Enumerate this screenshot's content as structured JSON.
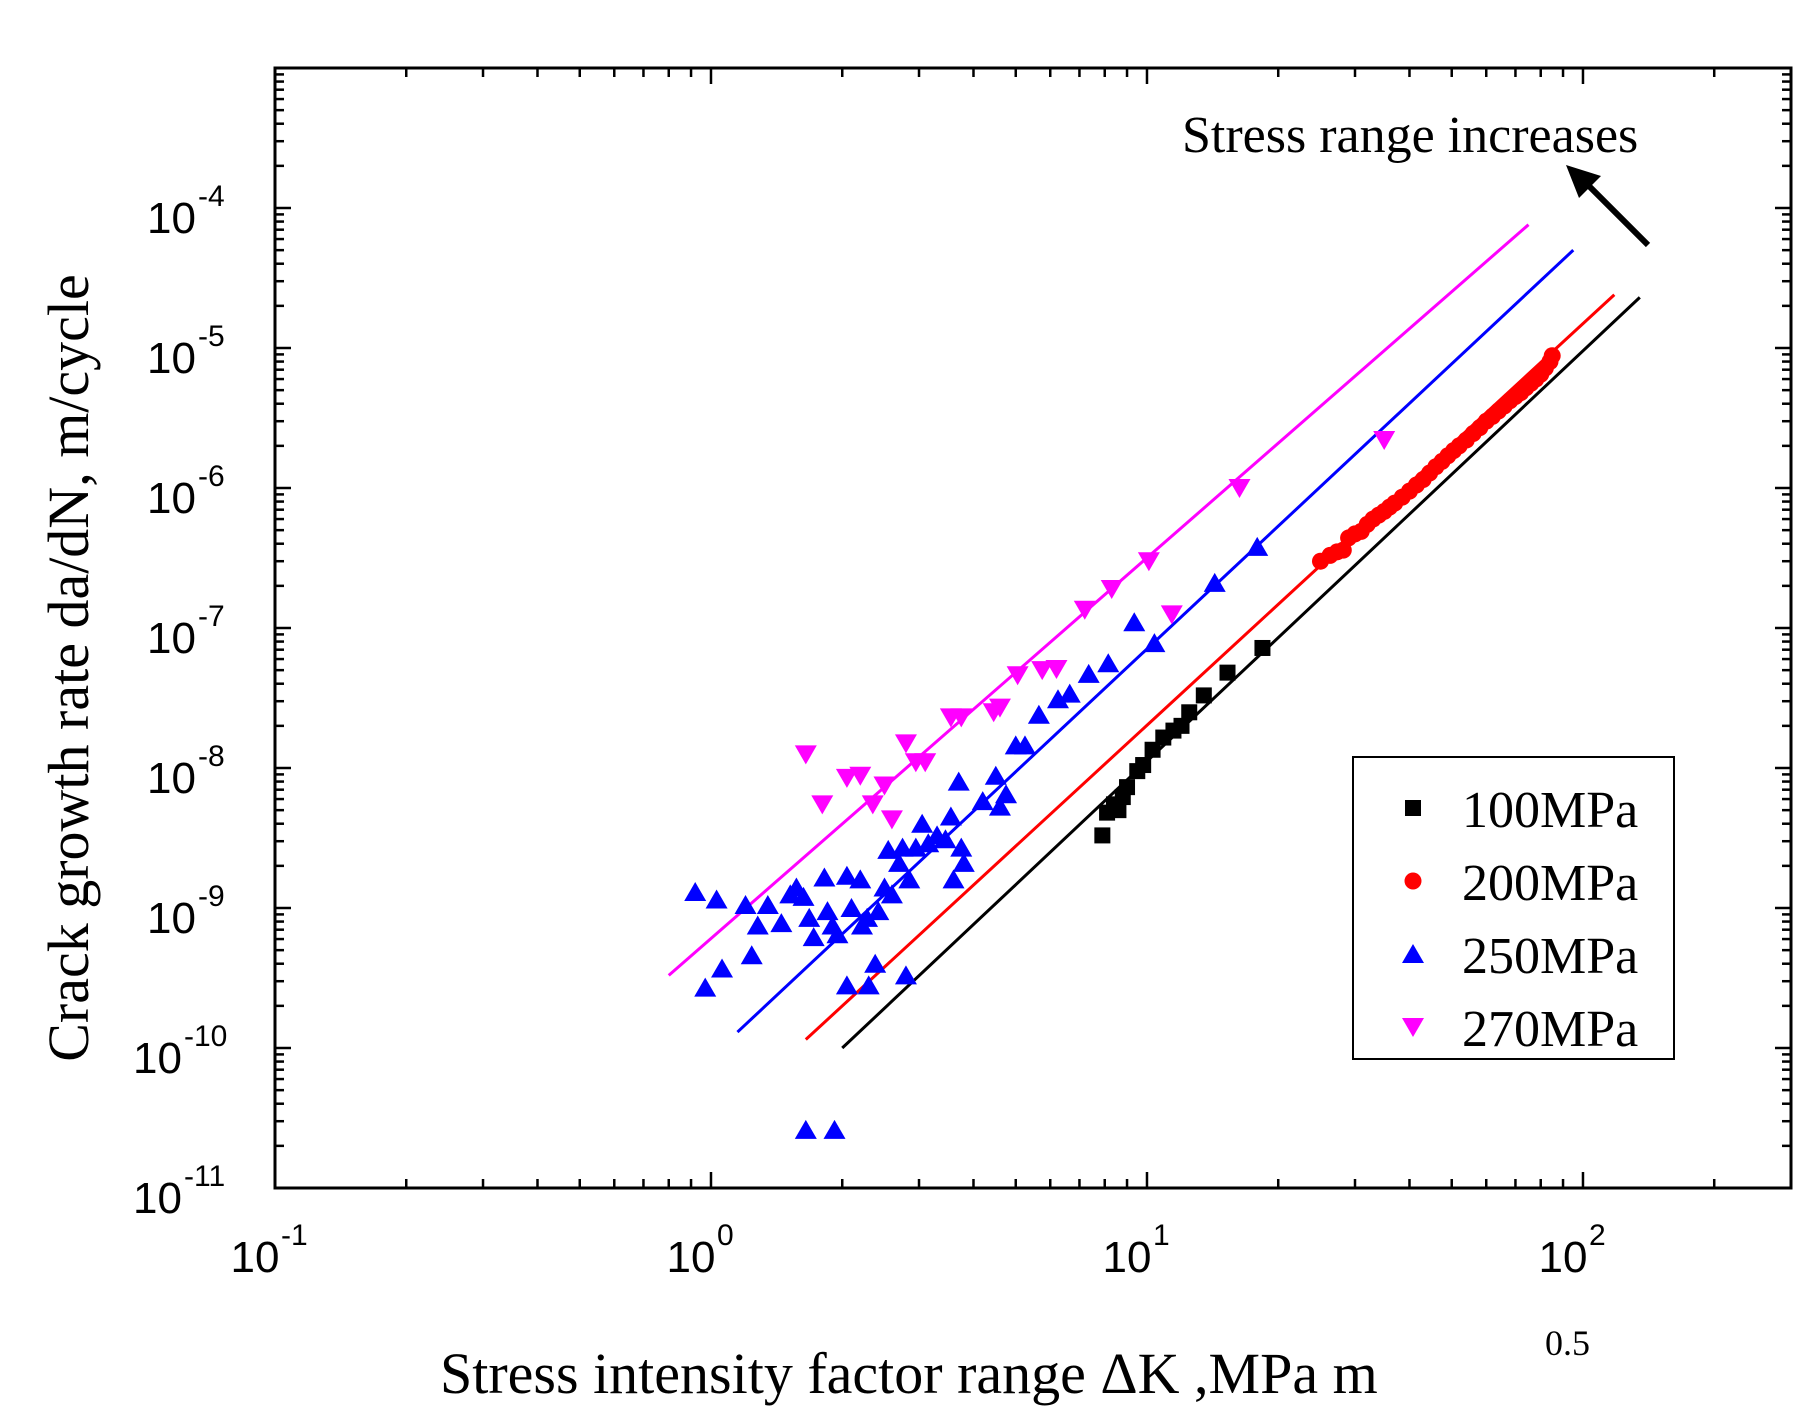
{
  "chart_data": {
    "type": "scatter",
    "xlabel": "Stress intensity factor range ΔK ,MPa m",
    "xlabel_sup": "0.5",
    "ylabel": "Crack growth rate da/dN, m/cycle",
    "xscale": "log",
    "yscale": "log",
    "xlim": [
      0.1,
      300
    ],
    "ylim": [
      1e-11,
      0.001
    ],
    "x_ticks": [
      {
        "base": "10",
        "exp": "-1",
        "value": 0.1
      },
      {
        "base": "10",
        "exp": "0",
        "value": 1
      },
      {
        "base": "10",
        "exp": "1",
        "value": 10
      },
      {
        "base": "10",
        "exp": "2",
        "value": 100
      }
    ],
    "y_ticks": [
      {
        "base": "10",
        "exp": "-11",
        "value": 1e-11
      },
      {
        "base": "10",
        "exp": "-10",
        "value": 1e-10
      },
      {
        "base": "10",
        "exp": "-9",
        "value": 1e-09
      },
      {
        "base": "10",
        "exp": "-8",
        "value": 1e-08
      },
      {
        "base": "10",
        "exp": "-7",
        "value": 1e-07
      },
      {
        "base": "10",
        "exp": "-6",
        "value": 1e-06
      },
      {
        "base": "10",
        "exp": "-5",
        "value": 1e-05
      },
      {
        "base": "10",
        "exp": "-4",
        "value": 0.0001
      }
    ],
    "annotation": "Stress range increases",
    "legend_position": "lower-right",
    "series": [
      {
        "name": "100MPa",
        "color": "#000000",
        "marker": "square",
        "fit": [
          [
            2.0,
            1e-10
          ],
          [
            135,
            2.3e-05
          ]
        ],
        "points": [
          [
            7.9,
            3.3e-09
          ],
          [
            8.1,
            4.8e-09
          ],
          [
            8.4,
            5.5e-09
          ],
          [
            8.6,
            5e-09
          ],
          [
            8.8,
            6.2e-09
          ],
          [
            9.0,
            7.3e-09
          ],
          [
            9.5,
            9.5e-09
          ],
          [
            9.8,
            1.05e-08
          ],
          [
            10.3,
            1.35e-08
          ],
          [
            10.9,
            1.65e-08
          ],
          [
            11.5,
            1.85e-08
          ],
          [
            12.0,
            2e-08
          ],
          [
            12.5,
            2.5e-08
          ],
          [
            13.5,
            3.3e-08
          ],
          [
            15.3,
            4.8e-08
          ],
          [
            18.4,
            7.2e-08
          ]
        ]
      },
      {
        "name": "200MPa",
        "color": "#ff0000",
        "marker": "circle",
        "fit": [
          [
            1.65,
            1.15e-10
          ],
          [
            118,
            2.4e-05
          ]
        ],
        "points": [
          [
            25,
            3e-07
          ],
          [
            26.3,
            3.3e-07
          ],
          [
            27.3,
            3.5e-07
          ],
          [
            28.2,
            3.6e-07
          ],
          [
            29,
            4.4e-07
          ],
          [
            30,
            4.7e-07
          ],
          [
            31,
            4.9e-07
          ],
          [
            32,
            5.5e-07
          ],
          [
            33,
            6e-07
          ],
          [
            34,
            6.4e-07
          ],
          [
            35,
            6.8e-07
          ],
          [
            36,
            7.3e-07
          ],
          [
            37,
            7.8e-07
          ],
          [
            38.5,
            8.6e-07
          ],
          [
            40,
            9.5e-07
          ],
          [
            41.5,
            1.05e-06
          ],
          [
            43,
            1.15e-06
          ],
          [
            44.5,
            1.28e-06
          ],
          [
            46,
            1.42e-06
          ],
          [
            47.5,
            1.55e-06
          ],
          [
            49,
            1.7e-06
          ],
          [
            50.5,
            1.85e-06
          ],
          [
            52,
            2e-06
          ],
          [
            54,
            2.2e-06
          ],
          [
            56,
            2.45e-06
          ],
          [
            58,
            2.7e-06
          ],
          [
            60,
            3e-06
          ],
          [
            62,
            3.25e-06
          ],
          [
            64,
            3.55e-06
          ],
          [
            66,
            3.85e-06
          ],
          [
            68,
            4.2e-06
          ],
          [
            70,
            4.5e-06
          ],
          [
            72,
            4.8e-06
          ],
          [
            74,
            5.2e-06
          ],
          [
            76,
            5.6e-06
          ],
          [
            78,
            6e-06
          ],
          [
            80,
            6.5e-06
          ],
          [
            82,
            7.2e-06
          ],
          [
            84,
            8e-06
          ],
          [
            85,
            8.8e-06
          ]
        ]
      },
      {
        "name": "250MPa",
        "color": "#0000ff",
        "marker": "triangle-up",
        "fit": [
          [
            1.15,
            1.3e-10
          ],
          [
            95,
            5e-05
          ]
        ],
        "points": [
          [
            0.92,
            1.3e-09
          ],
          [
            0.97,
            2.7e-10
          ],
          [
            1.03,
            1.15e-09
          ],
          [
            1.06,
            3.7e-10
          ],
          [
            1.2,
            1.05e-09
          ],
          [
            1.24,
            4.6e-10
          ],
          [
            1.28,
            7.5e-10
          ],
          [
            1.35,
            1.05e-09
          ],
          [
            1.45,
            7.8e-10
          ],
          [
            1.52,
            1.25e-09
          ],
          [
            1.57,
            1.4e-09
          ],
          [
            1.63,
            1.2e-09
          ],
          [
            1.68,
            8.5e-10
          ],
          [
            1.72,
            6.2e-10
          ],
          [
            1.82,
            1.65e-09
          ],
          [
            1.85,
            9.5e-10
          ],
          [
            1.9,
            7.5e-10
          ],
          [
            1.95,
            6.5e-10
          ],
          [
            2.05,
            1.7e-09
          ],
          [
            2.1,
            1e-09
          ],
          [
            2.05,
            2.8e-10
          ],
          [
            2.2,
            1.6e-09
          ],
          [
            2.22,
            7.5e-10
          ],
          [
            2.28,
            8.5e-10
          ],
          [
            2.3,
            2.8e-10
          ],
          [
            2.38,
            4e-10
          ],
          [
            2.42,
            9.5e-10
          ],
          [
            2.5,
            1.4e-09
          ],
          [
            2.55,
            2.6e-09
          ],
          [
            2.6,
            1.25e-09
          ],
          [
            2.7,
            2.1e-09
          ],
          [
            2.75,
            2.7e-09
          ],
          [
            2.8,
            3.3e-10
          ],
          [
            2.85,
            1.6e-09
          ],
          [
            2.95,
            2.7e-09
          ],
          [
            3.05,
            4e-09
          ],
          [
            3.15,
            2.9e-09
          ],
          [
            3.3,
            3.3e-09
          ],
          [
            3.45,
            3.1e-09
          ],
          [
            3.55,
            4.5e-09
          ],
          [
            3.6,
            1.6e-09
          ],
          [
            3.7,
            8e-09
          ],
          [
            3.75,
            2.7e-09
          ],
          [
            3.8,
            2.1e-09
          ],
          [
            4.2,
            5.8e-09
          ],
          [
            4.5,
            8.8e-09
          ],
          [
            4.6,
            5.3e-09
          ],
          [
            4.75,
            6.5e-09
          ],
          [
            5.0,
            1.45e-08
          ],
          [
            5.25,
            1.45e-08
          ],
          [
            5.65,
            2.4e-08
          ],
          [
            6.25,
            3.1e-08
          ],
          [
            6.65,
            3.4e-08
          ],
          [
            7.35,
            4.7e-08
          ],
          [
            8.15,
            5.6e-08
          ],
          [
            9.35,
            1.1e-07
          ],
          [
            10.4,
            7.8e-08
          ],
          [
            14.3,
            2.1e-07
          ],
          [
            17.9,
            3.8e-07
          ],
          [
            1.65,
            2.6e-11
          ],
          [
            1.92,
            2.6e-11
          ]
        ]
      },
      {
        "name": "270MPa",
        "color": "#ff00ff",
        "marker": "triangle-down",
        "fit": [
          [
            0.8,
            3.3e-10
          ],
          [
            75,
            7.6e-05
          ]
        ],
        "points": [
          [
            1.65,
            1.25e-08
          ],
          [
            1.8,
            5.5e-09
          ],
          [
            2.05,
            8.5e-09
          ],
          [
            2.2,
            8.8e-09
          ],
          [
            2.35,
            5.5e-09
          ],
          [
            2.5,
            7.5e-09
          ],
          [
            2.6,
            4.3e-09
          ],
          [
            2.8,
            1.5e-08
          ],
          [
            2.95,
            1.1e-08
          ],
          [
            3.1,
            1.1e-08
          ],
          [
            3.55,
            2.3e-08
          ],
          [
            3.75,
            2.3e-08
          ],
          [
            4.45,
            2.5e-08
          ],
          [
            4.6,
            2.7e-08
          ],
          [
            5.05,
            4.6e-08
          ],
          [
            5.75,
            5e-08
          ],
          [
            6.2,
            5.1e-08
          ],
          [
            7.2,
            1.35e-07
          ],
          [
            8.3,
            1.9e-07
          ],
          [
            10.1,
            3e-07
          ],
          [
            11.4,
            1.25e-07
          ],
          [
            16.3,
            1e-06
          ],
          [
            35,
            2.2e-06
          ]
        ]
      }
    ]
  }
}
